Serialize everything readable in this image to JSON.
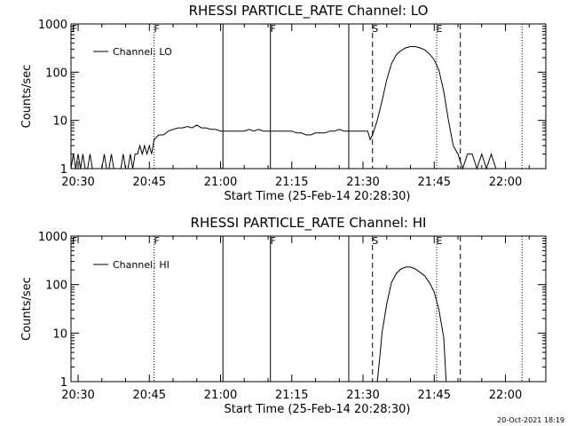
{
  "chart_data": [
    {
      "type": "line",
      "title": "RHESSI PARTICLE_RATE Channel: LO",
      "xlabel": "Start Time (25-Feb-14 20:28:30)",
      "ylabel": "Counts/sec",
      "yscale": "log",
      "ylim": [
        1,
        1000
      ],
      "xlim": [
        "20:28:30",
        "22:08:30"
      ],
      "x_ticks": [
        "20:30",
        "20:45",
        "21:00",
        "21:15",
        "21:30",
        "21:45",
        "22:00"
      ],
      "y_ticks": [
        "1",
        "10",
        "100",
        "1000"
      ],
      "legend": {
        "position": "top-left",
        "entries": [
          "Channel: LO"
        ]
      },
      "flag_labels": [
        "F",
        "F",
        "F",
        "S",
        "E"
      ],
      "series": [
        {
          "name": "Channel: LO",
          "points": [
            [
              "20:28:30",
              1
            ],
            [
              "20:29:00",
              2
            ],
            [
              "20:29:30",
              1
            ],
            [
              "20:30:00",
              2
            ],
            [
              "20:30:30",
              1
            ],
            [
              "20:31:00",
              2
            ],
            [
              "20:31:30",
              1
            ],
            [
              "20:32:00",
              1
            ],
            [
              "20:32:30",
              2
            ],
            [
              "20:33:00",
              1
            ],
            [
              "20:33:30",
              1
            ],
            [
              "20:34:00",
              1
            ],
            [
              "20:34:30",
              1
            ],
            [
              "20:35:00",
              1
            ],
            [
              "20:35:30",
              2
            ],
            [
              "20:36:00",
              1
            ],
            [
              "20:36:30",
              1
            ],
            [
              "20:37:00",
              2
            ],
            [
              "20:37:30",
              1
            ],
            [
              "20:38:00",
              1
            ],
            [
              "20:38:30",
              1
            ],
            [
              "20:39:00",
              1
            ],
            [
              "20:39:30",
              2
            ],
            [
              "20:40:00",
              1
            ],
            [
              "20:40:30",
              1
            ],
            [
              "20:41:00",
              2
            ],
            [
              "20:41:30",
              1
            ],
            [
              "20:42:00",
              2
            ],
            [
              "20:42:30",
              2
            ],
            [
              "20:43:00",
              3
            ],
            [
              "20:43:30",
              2
            ],
            [
              "20:44:00",
              3
            ],
            [
              "20:44:30",
              2
            ],
            [
              "20:45:00",
              3
            ],
            [
              "20:45:30",
              2
            ],
            [
              "20:46:00",
              4
            ],
            [
              "20:47:00",
              5
            ],
            [
              "20:48:00",
              5
            ],
            [
              "20:49:00",
              6
            ],
            [
              "20:50:00",
              6.5
            ],
            [
              "20:51:00",
              7
            ],
            [
              "20:52:00",
              7
            ],
            [
              "20:53:00",
              7.5
            ],
            [
              "20:54:00",
              7
            ],
            [
              "20:55:00",
              8
            ],
            [
              "20:56:00",
              7
            ],
            [
              "20:57:00",
              7
            ],
            [
              "20:58:00",
              6.5
            ],
            [
              "20:59:00",
              6.5
            ],
            [
              "21:00:00",
              6
            ],
            [
              "21:01:00",
              6
            ],
            [
              "21:02:00",
              6
            ],
            [
              "21:03:00",
              6
            ],
            [
              "21:04:00",
              6
            ],
            [
              "21:05:00",
              6
            ],
            [
              "21:06:00",
              6.5
            ],
            [
              "21:07:00",
              6
            ],
            [
              "21:08:00",
              6.5
            ],
            [
              "21:09:00",
              6
            ],
            [
              "21:10:00",
              6
            ],
            [
              "21:11:00",
              6
            ],
            [
              "21:12:00",
              6
            ],
            [
              "21:13:00",
              6
            ],
            [
              "21:14:00",
              6
            ],
            [
              "21:15:00",
              6
            ],
            [
              "21:16:00",
              5.5
            ],
            [
              "21:17:00",
              5.5
            ],
            [
              "21:18:00",
              5
            ],
            [
              "21:19:00",
              5
            ],
            [
              "21:20:00",
              5.5
            ],
            [
              "21:21:00",
              5.5
            ],
            [
              "21:22:00",
              5.5
            ],
            [
              "21:23:00",
              6
            ],
            [
              "21:24:00",
              6
            ],
            [
              "21:25:00",
              6.5
            ],
            [
              "21:26:00",
              6
            ],
            [
              "21:27:00",
              6
            ],
            [
              "21:28:00",
              6
            ],
            [
              "21:29:00",
              6
            ],
            [
              "21:30:00",
              6
            ],
            [
              "21:31:00",
              6
            ],
            [
              "21:31:30",
              4
            ],
            [
              "21:32:00",
              5
            ],
            [
              "21:33:00",
              10
            ],
            [
              "21:34:00",
              25
            ],
            [
              "21:35:00",
              70
            ],
            [
              "21:36:00",
              150
            ],
            [
              "21:37:00",
              230
            ],
            [
              "21:38:00",
              280
            ],
            [
              "21:39:00",
              320
            ],
            [
              "21:40:00",
              340
            ],
            [
              "21:41:00",
              340
            ],
            [
              "21:42:00",
              320
            ],
            [
              "21:43:00",
              290
            ],
            [
              "21:44:00",
              240
            ],
            [
              "21:45:00",
              180
            ],
            [
              "21:46:00",
              110
            ],
            [
              "21:47:00",
              40
            ],
            [
              "21:48:00",
              10
            ],
            [
              "21:49:00",
              3
            ],
            [
              "21:50:00",
              2
            ],
            [
              "21:51:00",
              1
            ],
            [
              "21:52:00",
              2
            ],
            [
              "21:53:00",
              2
            ],
            [
              "21:54:00",
              1
            ],
            [
              "21:55:00",
              2
            ],
            [
              "21:56:00",
              1
            ],
            [
              "21:57:00",
              2
            ],
            [
              "21:58:00",
              1
            ],
            [
              "21:59:00",
              1
            ],
            [
              "22:00:00",
              1
            ]
          ]
        }
      ],
      "flag_lines": [
        {
          "x": "20:46:00",
          "style": "dotted"
        },
        {
          "x": "21:00:30",
          "style": "solid"
        },
        {
          "x": "21:10:30",
          "style": "solid"
        },
        {
          "x": "21:27:00",
          "style": "solid"
        },
        {
          "x": "21:32:00",
          "style": "dashed"
        },
        {
          "x": "21:45:30",
          "style": "dotted"
        },
        {
          "x": "21:50:30",
          "style": "dashed"
        },
        {
          "x": "22:03:30",
          "style": "dotted"
        }
      ]
    },
    {
      "type": "line",
      "title": "RHESSI PARTICLE_RATE Channel: HI",
      "xlabel": "Start Time (25-Feb-14 20:28:30)",
      "ylabel": "Counts/sec",
      "yscale": "log",
      "ylim": [
        1,
        1000
      ],
      "xlim": [
        "20:28:30",
        "22:08:30"
      ],
      "x_ticks": [
        "20:30",
        "20:45",
        "21:00",
        "21:15",
        "21:30",
        "21:45",
        "22:00"
      ],
      "y_ticks": [
        "1",
        "10",
        "100",
        "1000"
      ],
      "legend": {
        "position": "top-left",
        "entries": [
          "Channel: HI"
        ]
      },
      "flag_labels": [
        "F",
        "F",
        "F",
        "S",
        "E"
      ],
      "series": [
        {
          "name": "Channel: HI",
          "points": [
            [
              "21:33:00",
              1
            ],
            [
              "21:33:30",
              3
            ],
            [
              "21:34:00",
              10
            ],
            [
              "21:35:00",
              40
            ],
            [
              "21:36:00",
              110
            ],
            [
              "21:37:00",
              170
            ],
            [
              "21:38:00",
              210
            ],
            [
              "21:39:00",
              230
            ],
            [
              "21:40:00",
              230
            ],
            [
              "21:41:00",
              210
            ],
            [
              "21:42:00",
              180
            ],
            [
              "21:43:00",
              150
            ],
            [
              "21:44:00",
              110
            ],
            [
              "21:45:00",
              70
            ],
            [
              "21:46:00",
              30
            ],
            [
              "21:47:00",
              8
            ],
            [
              "21:47:30",
              1
            ]
          ]
        }
      ],
      "flag_lines": [
        {
          "x": "20:46:00",
          "style": "dotted"
        },
        {
          "x": "21:00:30",
          "style": "solid"
        },
        {
          "x": "21:10:30",
          "style": "solid"
        },
        {
          "x": "21:27:00",
          "style": "solid"
        },
        {
          "x": "21:32:00",
          "style": "dashed"
        },
        {
          "x": "21:45:30",
          "style": "dotted"
        },
        {
          "x": "21:50:30",
          "style": "dashed"
        },
        {
          "x": "22:03:30",
          "style": "dotted"
        }
      ]
    }
  ],
  "footer": {
    "stamp": "20-Oct-2021 18:19"
  }
}
